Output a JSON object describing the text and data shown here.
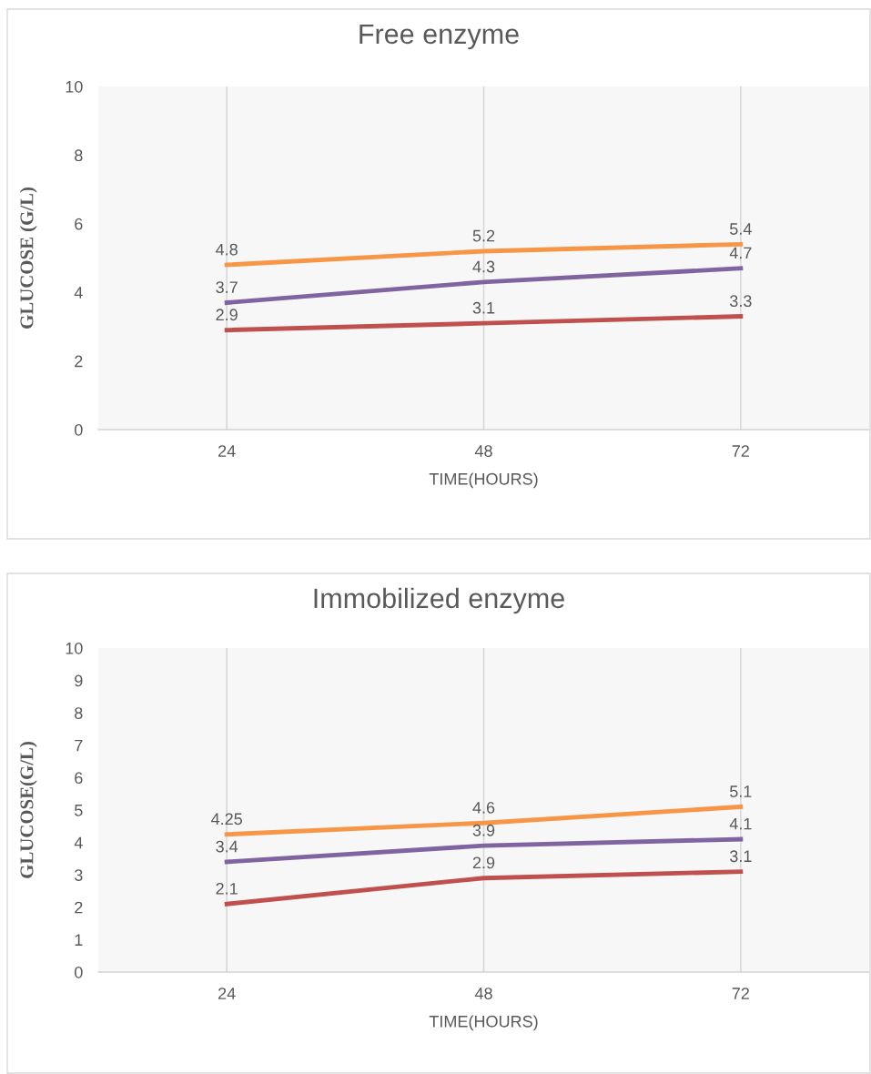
{
  "chart_data": [
    {
      "type": "line",
      "title": "Free enzyme",
      "xlabel": "TIME(HOURS)",
      "ylabel": "GLUCOSE (G/L)",
      "categories": [
        "24",
        "48",
        "72"
      ],
      "series": [
        {
          "color": "#f79646",
          "values": [
            4.8,
            5.2,
            5.4
          ]
        },
        {
          "color": "#8064a2",
          "values": [
            3.7,
            4.3,
            4.7
          ]
        },
        {
          "color": "#c0504d",
          "values": [
            2.9,
            3.1,
            3.3
          ]
        }
      ],
      "ylim": [
        0,
        10
      ],
      "yticks": [
        0,
        2,
        4,
        6,
        8,
        10
      ],
      "grid": "x",
      "data_labels": true,
      "marker": "none",
      "line_style": "solid"
    },
    {
      "type": "line",
      "title": "Immobilized enzyme",
      "xlabel": "TIME(HOURS)",
      "ylabel": "GLUCOSE(G/L)",
      "categories": [
        "24",
        "48",
        "72"
      ],
      "series": [
        {
          "color": "#f79646",
          "values": [
            4.25,
            4.6,
            5.1
          ]
        },
        {
          "color": "#8064a2",
          "values": [
            3.4,
            3.9,
            4.1
          ]
        },
        {
          "color": "#c0504d",
          "values": [
            2.1,
            2.9,
            3.1
          ]
        }
      ],
      "ylim": [
        0,
        10
      ],
      "yticks": [
        0,
        1,
        2,
        3,
        4,
        5,
        6,
        7,
        8,
        9,
        10
      ],
      "grid": "x",
      "data_labels": true,
      "marker": "none",
      "line_style": "solid"
    }
  ]
}
